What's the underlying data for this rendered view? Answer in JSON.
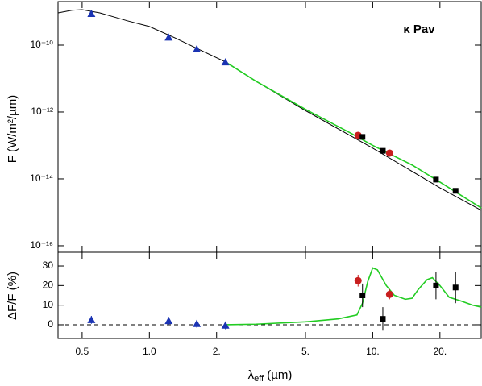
{
  "chart_data": [
    {
      "type": "scatter",
      "xscale": "log",
      "yscale": "log",
      "xlim": [
        0.39,
        30.6
      ],
      "ylim": [
        6.4e-17,
        2e-09
      ],
      "xticks": [
        0.5,
        1,
        2,
        5,
        10,
        20
      ],
      "yticks": [
        {
          "value": 1e-10,
          "label": "10⁻¹⁰"
        },
        {
          "value": 1e-12,
          "label": "10⁻¹²"
        },
        {
          "value": 1e-14,
          "label": "10⁻¹⁴"
        },
        {
          "value": 1e-16,
          "label": "10⁻¹⁶"
        }
      ],
      "ylabel": "F (W/m²/µm)",
      "annotation": "κ Pav",
      "series": [
        {
          "marker": "line",
          "color": "#000000",
          "x": [
            0.39,
            0.45,
            0.5,
            0.6,
            0.8,
            1.0,
            1.3,
            1.6,
            2.2,
            3,
            5,
            10,
            20,
            30.6
          ],
          "values": [
            9.2e-10,
            1.1e-09,
            1.15e-09,
            9.2e-10,
            5.3e-10,
            3.6e-10,
            1.65e-10,
            8.5e-11,
            3.1e-11,
            8.3e-12,
            1.1e-12,
            8.3e-14,
            5.4e-15,
            1.15e-15
          ]
        },
        {
          "marker": "line",
          "color": "#22cc22",
          "x": [
            2.2,
            3,
            5,
            8,
            10,
            15,
            20,
            30.6
          ],
          "values": [
            3.1e-11,
            8.3e-12,
            1.2e-12,
            2.3e-13,
            1e-13,
            2.6e-14,
            8e-15,
            1.35e-15
          ]
        },
        {
          "marker": "triangle",
          "color": "#1a33b3",
          "x": [
            0.55,
            1.22,
            1.63,
            2.19
          ],
          "values": [
            8.7e-10,
            1.7e-10,
            7.6e-11,
            3.1e-11
          ]
        },
        {
          "marker": "circle",
          "color": "#c81e1e",
          "x": [
            8.6,
            11.9
          ],
          "values": [
            2e-13,
            5.9e-14
          ]
        },
        {
          "marker": "square",
          "color": "#000000",
          "x": [
            9.0,
            11.1,
            19.2,
            23.5
          ],
          "values": [
            1.8e-13,
            6.9e-14,
            9.5e-15,
            4.4e-15
          ]
        }
      ]
    },
    {
      "type": "scatter",
      "xscale": "log",
      "yscale": "linear",
      "xlim": [
        0.39,
        30.6
      ],
      "ylim": [
        -7,
        37
      ],
      "xticks": [
        0.5,
        {
          "value": 1,
          "label": "1.0"
        },
        {
          "value": 2,
          "label": "2."
        },
        {
          "value": 5,
          "label": "5."
        },
        {
          "value": 10,
          "label": "10."
        },
        {
          "value": 20,
          "label": "20."
        }
      ],
      "yticks": [
        0,
        10,
        20,
        30
      ],
      "hline": 0,
      "ylabel": "ΔF/F (%)",
      "xlabel": [
        "λ",
        "eff",
        " (µm)"
      ],
      "series": [
        {
          "marker": "line",
          "color": "#22cc22",
          "x": [
            2.19,
            3,
            5,
            7,
            8.5,
            9,
            9.5,
            10,
            10.5,
            11.5,
            12.5,
            14,
            15,
            16,
            17.5,
            18.5,
            20,
            22,
            25,
            28,
            30.6
          ],
          "values": [
            0,
            0.3,
            1.5,
            3,
            5,
            11,
            22,
            29,
            28,
            20,
            15,
            13,
            13.5,
            18,
            23,
            24,
            20,
            14,
            12,
            10,
            9
          ]
        },
        {
          "marker": "triangle",
          "color": "#1a33b3",
          "x": [
            0.55,
            1.22,
            1.63,
            2.19
          ],
          "values": [
            2.5,
            2,
            0.5,
            -0.3
          ],
          "errors": [
            2,
            2,
            2,
            2
          ]
        },
        {
          "marker": "circle",
          "color": "#c81e1e",
          "x": [
            8.6,
            11.9
          ],
          "values": [
            22.5,
            15.5
          ],
          "errors": [
            3,
            2.5
          ]
        },
        {
          "marker": "square",
          "color": "#000000",
          "x": [
            9.0,
            11.1,
            19.2,
            23.5
          ],
          "values": [
            15,
            3,
            20,
            19
          ],
          "errors": [
            6,
            6,
            7,
            8
          ]
        }
      ]
    }
  ]
}
